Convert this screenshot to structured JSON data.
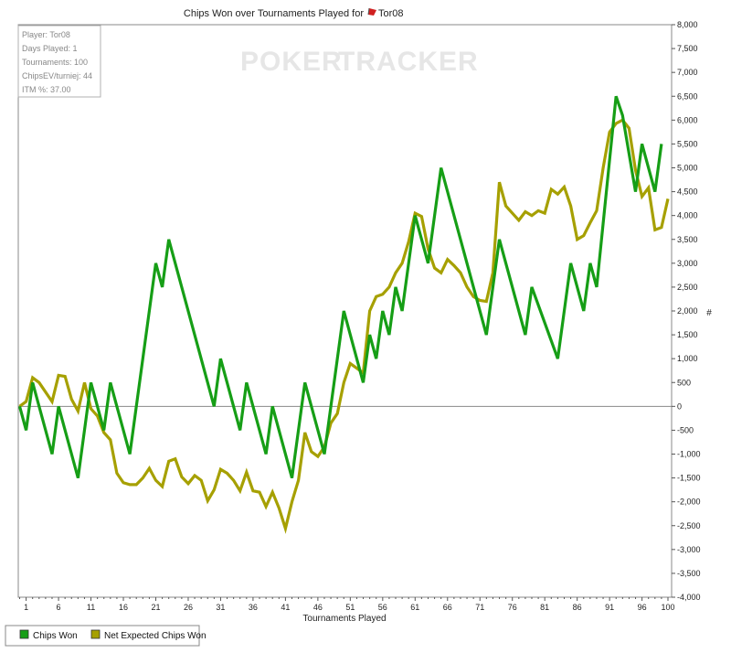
{
  "colors": {
    "chips_won": "#169e16",
    "net_expected": "#a6a000",
    "zero_line": "#8a8a8a",
    "frame": "#888888"
  },
  "watermark": {
    "poker": "POKER",
    "tracker": "TRACKER"
  },
  "info": {
    "player": "Player: Tor08",
    "days": "Days Played: 1",
    "tournaments": "Tournaments: 100",
    "chipsev": "ChipsEV/turniej: 44",
    "itm": "ITM %: 37.00"
  },
  "chart_data": {
    "type": "line",
    "title": "Chips Won over Tournaments Played for",
    "title_player": "Tor08",
    "xlabel": "Tournaments Played",
    "ylabel": "#",
    "xlim": [
      0,
      100
    ],
    "ylim": [
      -4000,
      8000
    ],
    "x_ticks": [
      1,
      6,
      11,
      16,
      21,
      26,
      31,
      36,
      41,
      46,
      51,
      56,
      61,
      66,
      71,
      76,
      81,
      86,
      91,
      96,
      100
    ],
    "y_ticks": [
      "8,000",
      "7,500",
      "7,000",
      "6,500",
      "6,000",
      "5,500",
      "5,000",
      "4,500",
      "4,000",
      "3,500",
      "3,000",
      "2,500",
      "2,000",
      "1,500",
      "1,000",
      "500",
      "0",
      "-500",
      "-1,000",
      "-1,500",
      "-2,000",
      "-2,500",
      "-3,000",
      "-3,500",
      "-4,000"
    ],
    "y_tick_values": [
      8000,
      7500,
      7000,
      6500,
      6000,
      5500,
      5000,
      4500,
      4000,
      3500,
      3000,
      2500,
      2000,
      1500,
      1000,
      500,
      0,
      -500,
      -1000,
      -1500,
      -2000,
      -2500,
      -3000,
      -3500,
      -4000
    ],
    "legend_position": "bottom-left",
    "series": [
      {
        "name": "Chips Won",
        "points": [
          [
            0,
            0
          ],
          [
            1,
            -500
          ],
          [
            2,
            500
          ],
          [
            5,
            -1000
          ],
          [
            6,
            0
          ],
          [
            9,
            -1500
          ],
          [
            11,
            500
          ],
          [
            13,
            -500
          ],
          [
            14,
            500
          ],
          [
            17,
            -1000
          ],
          [
            21,
            3000
          ],
          [
            22,
            2500
          ],
          [
            23,
            3500
          ],
          [
            30,
            0
          ],
          [
            31,
            1000
          ],
          [
            34,
            -500
          ],
          [
            35,
            500
          ],
          [
            38,
            -1000
          ],
          [
            39,
            0
          ],
          [
            42,
            -1500
          ],
          [
            44,
            500
          ],
          [
            47,
            -1000
          ],
          [
            50,
            2000
          ],
          [
            53,
            500
          ],
          [
            54,
            1500
          ],
          [
            55,
            1000
          ],
          [
            56,
            2000
          ],
          [
            57,
            1500
          ],
          [
            58,
            2500
          ],
          [
            59,
            2000
          ],
          [
            61,
            4000
          ],
          [
            63,
            3000
          ],
          [
            65,
            5000
          ],
          [
            72,
            1500
          ],
          [
            74,
            3500
          ],
          [
            78,
            1500
          ],
          [
            79,
            2500
          ],
          [
            83,
            1000
          ],
          [
            85,
            3000
          ],
          [
            87,
            2000
          ],
          [
            88,
            3000
          ],
          [
            89,
            2500
          ],
          [
            92,
            6500
          ],
          [
            93,
            6100
          ],
          [
            95,
            4500
          ],
          [
            96,
            5500
          ],
          [
            98,
            4500
          ],
          [
            99,
            5500
          ]
        ]
      },
      {
        "name": "Net Expected Chips Won",
        "points": [
          [
            0,
            0
          ],
          [
            1,
            100
          ],
          [
            2,
            600
          ],
          [
            3,
            500
          ],
          [
            5,
            100
          ],
          [
            6,
            650
          ],
          [
            7,
            630
          ],
          [
            8,
            150
          ],
          [
            9,
            -100
          ],
          [
            10,
            500
          ],
          [
            11,
            -50
          ],
          [
            12,
            -200
          ],
          [
            13,
            -550
          ],
          [
            14,
            -700
          ],
          [
            15,
            -1400
          ],
          [
            16,
            -1600
          ],
          [
            17,
            -1640
          ],
          [
            18,
            -1640
          ],
          [
            19,
            -1500
          ],
          [
            20,
            -1300
          ],
          [
            21,
            -1550
          ],
          [
            22,
            -1680
          ],
          [
            23,
            -1150
          ],
          [
            24,
            -1100
          ],
          [
            25,
            -1480
          ],
          [
            26,
            -1620
          ],
          [
            27,
            -1450
          ],
          [
            28,
            -1550
          ],
          [
            29,
            -1980
          ],
          [
            30,
            -1750
          ],
          [
            31,
            -1320
          ],
          [
            32,
            -1400
          ],
          [
            33,
            -1550
          ],
          [
            34,
            -1770
          ],
          [
            35,
            -1380
          ],
          [
            36,
            -1770
          ],
          [
            37,
            -1800
          ],
          [
            38,
            -2100
          ],
          [
            39,
            -1800
          ],
          [
            40,
            -2130
          ],
          [
            41,
            -2560
          ],
          [
            42,
            -2000
          ],
          [
            43,
            -1550
          ],
          [
            44,
            -550
          ],
          [
            45,
            -950
          ],
          [
            46,
            -1050
          ],
          [
            47,
            -850
          ],
          [
            48,
            -350
          ],
          [
            49,
            -150
          ],
          [
            50,
            500
          ],
          [
            51,
            900
          ],
          [
            52,
            800
          ],
          [
            53,
            700
          ],
          [
            54,
            2000
          ],
          [
            55,
            2300
          ],
          [
            56,
            2350
          ],
          [
            57,
            2500
          ],
          [
            58,
            2800
          ],
          [
            59,
            3000
          ],
          [
            60,
            3450
          ],
          [
            61,
            4050
          ],
          [
            62,
            3980
          ],
          [
            63,
            3300
          ],
          [
            64,
            2900
          ],
          [
            65,
            2800
          ],
          [
            66,
            3080
          ],
          [
            67,
            2950
          ],
          [
            68,
            2800
          ],
          [
            69,
            2500
          ],
          [
            70,
            2300
          ],
          [
            71,
            2220
          ],
          [
            72,
            2200
          ],
          [
            73,
            2800
          ],
          [
            74,
            4700
          ],
          [
            75,
            4200
          ],
          [
            76,
            4050
          ],
          [
            77,
            3900
          ],
          [
            78,
            4080
          ],
          [
            79,
            4000
          ],
          [
            80,
            4100
          ],
          [
            81,
            4050
          ],
          [
            82,
            4550
          ],
          [
            83,
            4450
          ],
          [
            84,
            4600
          ],
          [
            85,
            4200
          ],
          [
            86,
            3500
          ],
          [
            87,
            3580
          ],
          [
            88,
            3850
          ],
          [
            89,
            4100
          ],
          [
            90,
            5000
          ],
          [
            91,
            5750
          ],
          [
            92,
            5930
          ],
          [
            93,
            6000
          ],
          [
            94,
            5830
          ],
          [
            95,
            4950
          ],
          [
            96,
            4400
          ],
          [
            97,
            4580
          ],
          [
            98,
            3700
          ],
          [
            99,
            3750
          ],
          [
            100,
            4350
          ]
        ]
      }
    ]
  }
}
